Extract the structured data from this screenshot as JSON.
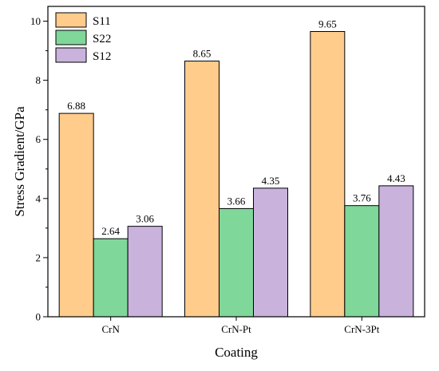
{
  "chart_data": {
    "type": "bar",
    "categories": [
      "CrN",
      "CrN-Pt",
      "CrN-3Pt"
    ],
    "series": [
      {
        "name": "S11",
        "values": [
          6.88,
          8.65,
          9.65
        ],
        "color": "#FFCC8C"
      },
      {
        "name": "S22",
        "values": [
          2.64,
          3.66,
          3.76
        ],
        "color": "#7FD79A"
      },
      {
        "name": "S12",
        "values": [
          3.06,
          4.35,
          4.43
        ],
        "color": "#C9B3DD"
      }
    ],
    "data_labels": [
      [
        "6.88",
        "8.65",
        "9.65"
      ],
      [
        "2.64",
        "3.66",
        "3.76"
      ],
      [
        "3.06",
        "4.35",
        "4.43"
      ]
    ],
    "title": "",
    "xlabel": "Coating",
    "ylabel": "Stress Gradient/GPa",
    "ylim": [
      0,
      10.5
    ],
    "yticks": [
      0,
      2,
      4,
      6,
      8,
      10
    ],
    "grid": false,
    "legend_position": "top-left"
  }
}
